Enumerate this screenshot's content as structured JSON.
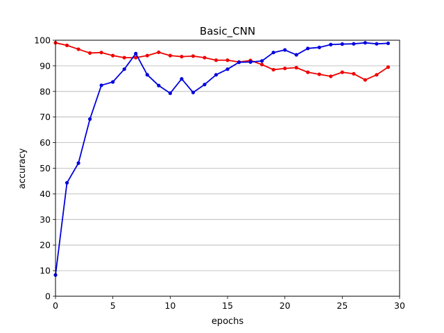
{
  "chart_data": {
    "type": "line",
    "title": "Basic_CNN",
    "xlabel": "epochs",
    "ylabel": "accuracy",
    "xlim": [
      0,
      30
    ],
    "ylim": [
      0,
      100
    ],
    "xticks": [
      0,
      5,
      10,
      15,
      20,
      25,
      30
    ],
    "yticks": [
      0,
      10,
      20,
      30,
      40,
      50,
      60,
      70,
      80,
      90,
      100
    ],
    "grid": "horizontal",
    "legend": null,
    "series": [
      {
        "color": "#ee0000",
        "marker": "dot",
        "x": [
          0,
          1,
          2,
          3,
          4,
          5,
          6,
          7,
          8,
          9,
          10,
          11,
          12,
          13,
          14,
          15,
          16,
          17,
          18,
          19,
          20,
          21,
          22,
          23,
          24,
          25,
          26,
          27,
          28,
          29
        ],
        "values": [
          99.0,
          98.0,
          96.5,
          95.0,
          95.2,
          94.0,
          93.2,
          93.2,
          94.0,
          95.3,
          94.0,
          93.6,
          93.8,
          93.2,
          92.2,
          92.2,
          91.5,
          92.1,
          90.5,
          88.5,
          89.0,
          89.3,
          87.5,
          86.7,
          85.9,
          87.5,
          86.9,
          84.5,
          86.5,
          89.5
        ]
      },
      {
        "color": "#0000dd",
        "marker": "dot",
        "x": [
          0,
          1,
          2,
          3,
          4,
          5,
          6,
          7,
          8,
          9,
          10,
          11,
          12,
          13,
          14,
          15,
          16,
          17,
          18,
          19,
          20,
          21,
          22,
          23,
          24,
          25,
          26,
          27,
          28,
          29
        ],
        "values": [
          8.3,
          44.3,
          52.0,
          69.2,
          82.4,
          83.7,
          88.7,
          94.8,
          86.5,
          82.3,
          79.3,
          84.9,
          79.6,
          82.7,
          86.5,
          88.7,
          91.4,
          91.5,
          91.9,
          95.2,
          96.2,
          94.3,
          96.8,
          97.2,
          98.3,
          98.5,
          98.6,
          99.0,
          98.6,
          98.8
        ]
      }
    ]
  }
}
